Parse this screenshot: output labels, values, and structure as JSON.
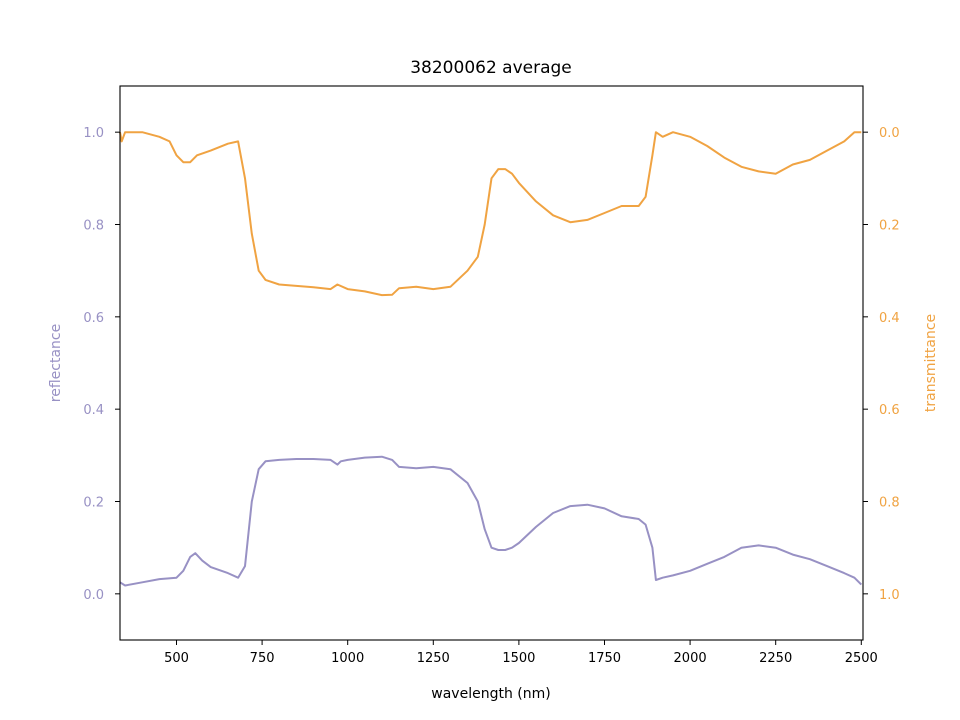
{
  "chart_data": {
    "type": "line",
    "title": "38200062 average",
    "xlabel": "wavelength (nm)",
    "ylabel_left": "reflectance",
    "ylabel_right": "transmittance",
    "xlim": [
      335,
      2505
    ],
    "ylim_left": [
      -0.1,
      1.1
    ],
    "ylim_right": [
      1.1,
      -0.1
    ],
    "right_axis_inverted": true,
    "grid": false,
    "x_ticks": [
      500,
      750,
      1000,
      1250,
      1500,
      1750,
      2000,
      2250,
      2500
    ],
    "y_ticks_left": [
      0.0,
      0.2,
      0.4,
      0.6,
      0.8,
      1.0
    ],
    "y_ticks_right": [
      0.0,
      0.2,
      0.4,
      0.6,
      0.8,
      1.0
    ],
    "colors": {
      "reflectance": "#9891c4",
      "transmittance": "#f0a342",
      "axes": "#000000"
    },
    "series": [
      {
        "name": "reflectance",
        "axis": "left",
        "x": [
          335,
          350,
          400,
          450,
          500,
          520,
          540,
          555,
          575,
          600,
          650,
          680,
          700,
          720,
          740,
          760,
          800,
          850,
          900,
          950,
          970,
          980,
          1000,
          1050,
          1100,
          1130,
          1150,
          1200,
          1250,
          1300,
          1350,
          1380,
          1400,
          1420,
          1440,
          1460,
          1480,
          1500,
          1550,
          1600,
          1650,
          1700,
          1750,
          1800,
          1850,
          1870,
          1890,
          1900,
          1920,
          1950,
          2000,
          2050,
          2100,
          2150,
          2200,
          2250,
          2300,
          2350,
          2400,
          2450,
          2480,
          2500
        ],
        "y": [
          0.025,
          0.018,
          0.025,
          0.032,
          0.035,
          0.05,
          0.08,
          0.088,
          0.072,
          0.058,
          0.045,
          0.035,
          0.06,
          0.2,
          0.27,
          0.287,
          0.29,
          0.292,
          0.292,
          0.29,
          0.28,
          0.287,
          0.29,
          0.295,
          0.297,
          0.29,
          0.275,
          0.272,
          0.275,
          0.27,
          0.24,
          0.2,
          0.14,
          0.1,
          0.095,
          0.095,
          0.1,
          0.11,
          0.145,
          0.175,
          0.19,
          0.193,
          0.185,
          0.168,
          0.162,
          0.15,
          0.1,
          0.03,
          0.035,
          0.04,
          0.05,
          0.065,
          0.08,
          0.1,
          0.105,
          0.1,
          0.085,
          0.075,
          0.06,
          0.045,
          0.035,
          0.02
        ]
      },
      {
        "name": "transmittance",
        "axis": "right",
        "x": [
          335,
          340,
          350,
          400,
          450,
          480,
          500,
          520,
          540,
          560,
          580,
          600,
          650,
          680,
          700,
          720,
          740,
          760,
          800,
          850,
          900,
          950,
          970,
          1000,
          1050,
          1100,
          1130,
          1150,
          1200,
          1250,
          1300,
          1350,
          1380,
          1400,
          1420,
          1440,
          1460,
          1480,
          1500,
          1550,
          1600,
          1650,
          1700,
          1750,
          1800,
          1850,
          1870,
          1890,
          1900,
          1920,
          1950,
          2000,
          2050,
          2100,
          2150,
          2200,
          2250,
          2300,
          2350,
          2400,
          2450,
          2480,
          2500
        ],
        "y": [
          0.0,
          0.02,
          0.0,
          0.0,
          0.01,
          0.02,
          0.05,
          0.065,
          0.065,
          0.05,
          0.045,
          0.04,
          0.025,
          0.02,
          0.1,
          0.22,
          0.3,
          0.32,
          0.33,
          0.333,
          0.336,
          0.34,
          0.33,
          0.34,
          0.345,
          0.353,
          0.352,
          0.338,
          0.335,
          0.34,
          0.335,
          0.3,
          0.27,
          0.2,
          0.1,
          0.08,
          0.08,
          0.09,
          0.11,
          0.15,
          0.18,
          0.195,
          0.19,
          0.175,
          0.16,
          0.16,
          0.14,
          0.05,
          0.0,
          0.01,
          0.0,
          0.01,
          0.03,
          0.055,
          0.075,
          0.085,
          0.09,
          0.07,
          0.06,
          0.04,
          0.02,
          0.0,
          0.0
        ]
      }
    ]
  }
}
